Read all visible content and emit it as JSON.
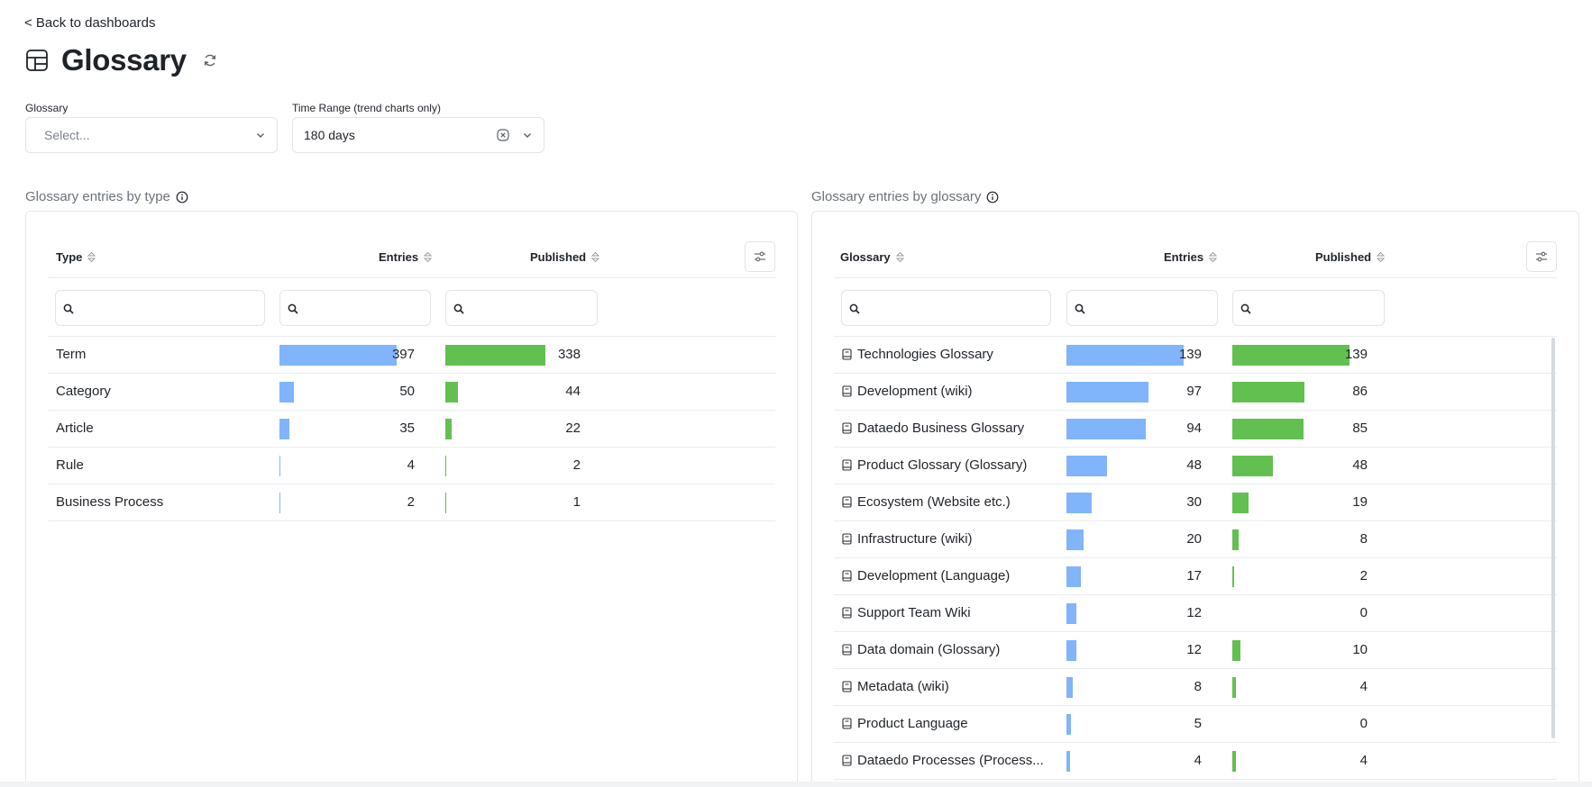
{
  "nav": {
    "back_label": "< Back to dashboards"
  },
  "header": {
    "title": "Glossary",
    "icon": "table-icon",
    "refresh_icon": "refresh-icon"
  },
  "filters": {
    "glossary": {
      "label": "Glossary",
      "placeholder": "Select..."
    },
    "time_range": {
      "label": "Time Range (trend charts only)",
      "value": "180 days"
    }
  },
  "colors": {
    "entries_bar": "#80b4fb",
    "published_bar": "#62c050"
  },
  "by_type": {
    "title": "Glossary entries by type",
    "columns": {
      "name": "Type",
      "entries": "Entries",
      "published": "Published"
    },
    "max": 397,
    "rows": [
      {
        "name": "Term",
        "entries": 397,
        "published": 338
      },
      {
        "name": "Category",
        "entries": 50,
        "published": 44
      },
      {
        "name": "Article",
        "entries": 35,
        "published": 22
      },
      {
        "name": "Rule",
        "entries": 4,
        "published": 2
      },
      {
        "name": "Business Process",
        "entries": 2,
        "published": 1
      }
    ]
  },
  "by_glossary": {
    "title": "Glossary entries by glossary",
    "columns": {
      "name": "Glossary",
      "entries": "Entries",
      "published": "Published"
    },
    "max": 139,
    "rows": [
      {
        "name": "Technologies Glossary",
        "entries": 139,
        "published": 139
      },
      {
        "name": "Development (wiki)",
        "entries": 97,
        "published": 86
      },
      {
        "name": "Dataedo Business Glossary",
        "entries": 94,
        "published": 85
      },
      {
        "name": "Product Glossary (Glossary)",
        "entries": 48,
        "published": 48
      },
      {
        "name": "Ecosystem (Website etc.)",
        "entries": 30,
        "published": 19
      },
      {
        "name": "Infrastructure (wiki)",
        "entries": 20,
        "published": 8
      },
      {
        "name": "Development (Language)",
        "entries": 17,
        "published": 2
      },
      {
        "name": "Support Team Wiki",
        "entries": 12,
        "published": 0
      },
      {
        "name": "Data domain (Glossary)",
        "entries": 12,
        "published": 10
      },
      {
        "name": "Metadata (wiki)",
        "entries": 8,
        "published": 4
      },
      {
        "name": "Product Language",
        "entries": 5,
        "published": 0
      },
      {
        "name": "Dataedo Processes (Process...",
        "entries": 4,
        "published": 4
      }
    ]
  }
}
